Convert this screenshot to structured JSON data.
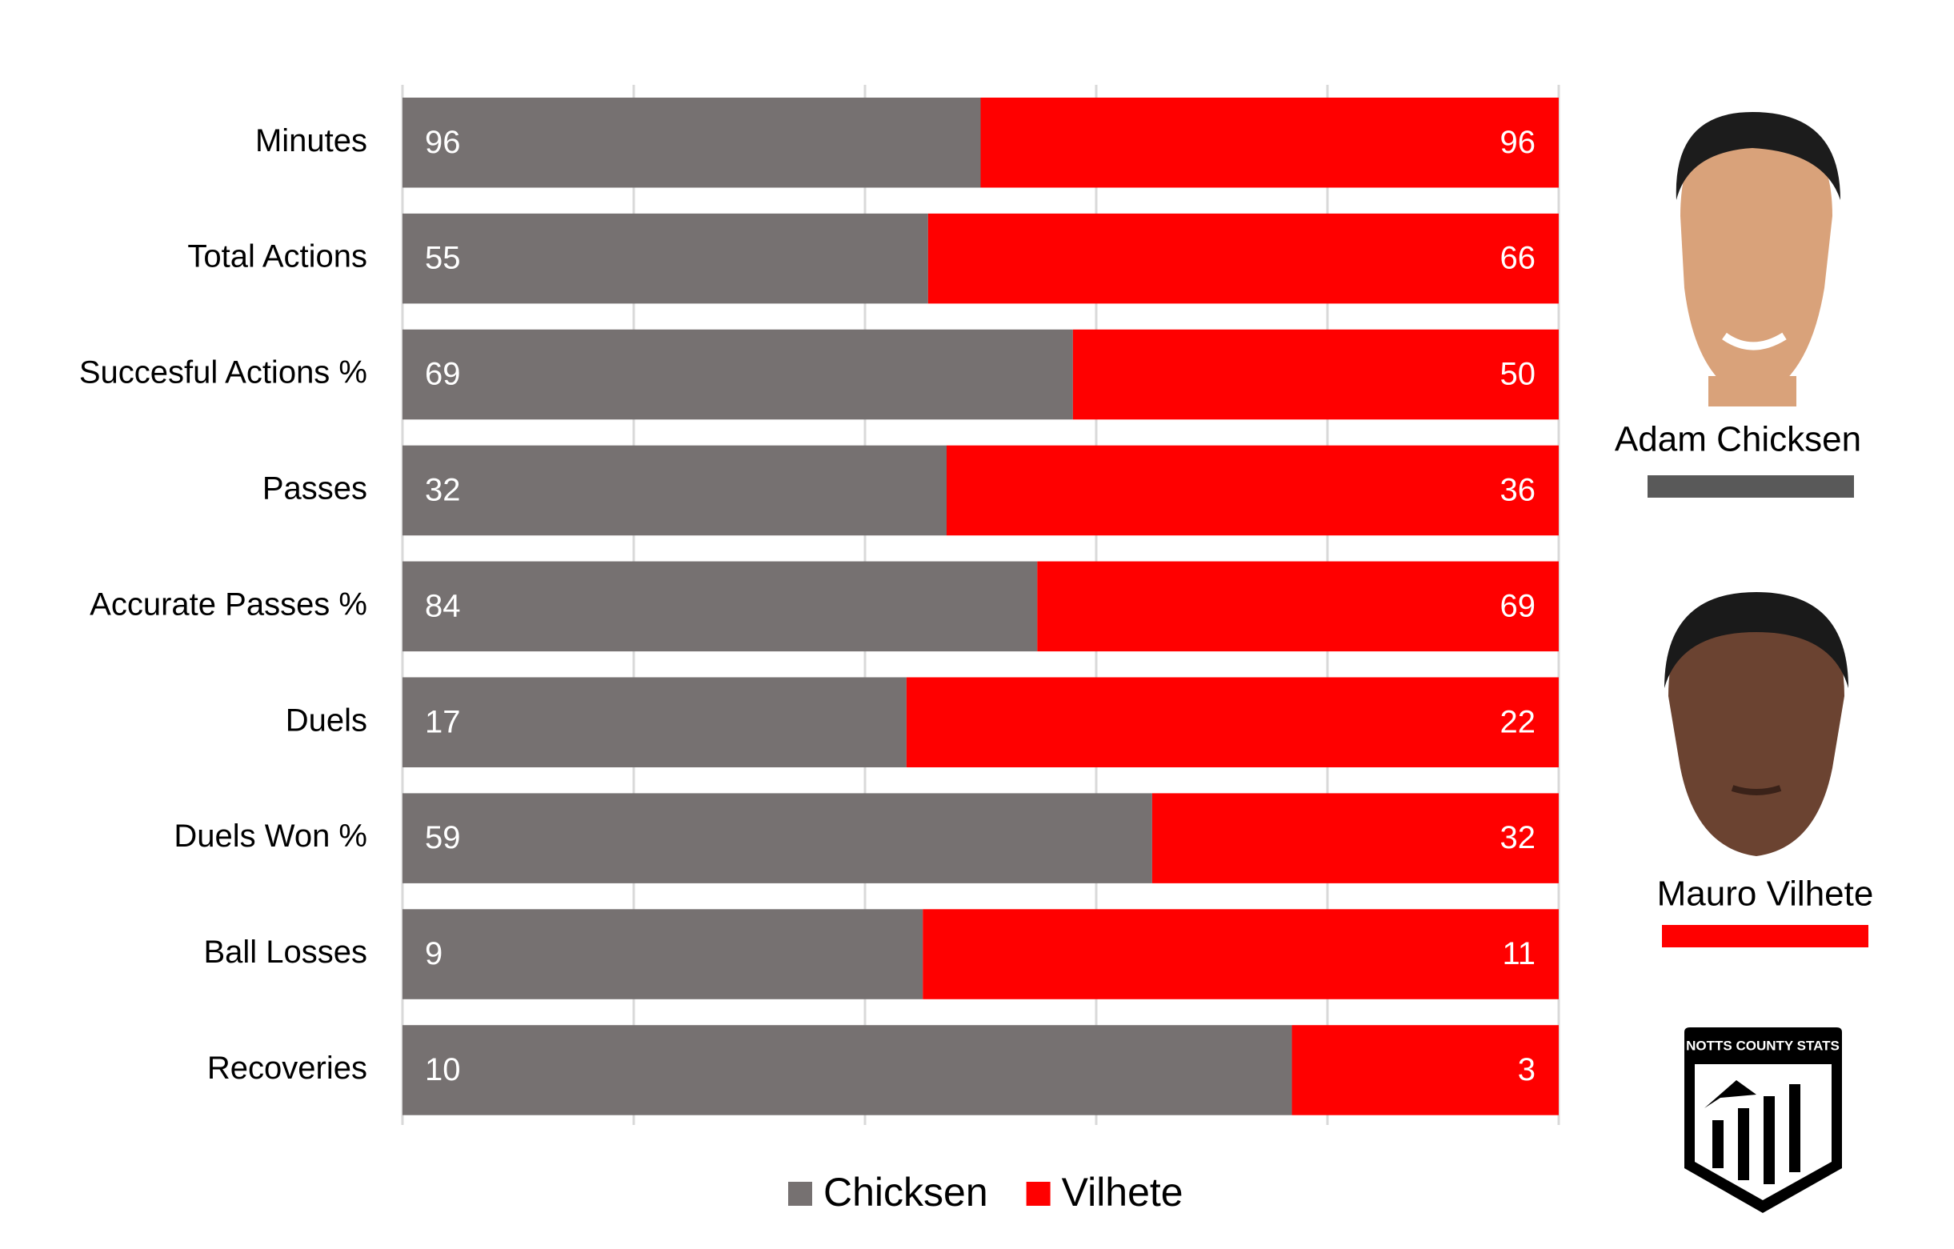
{
  "chart_data": {
    "type": "bar",
    "orientation": "horizontal",
    "stacking": "percent",
    "categories": [
      "Minutes",
      "Total Actions",
      "Succesful Actions %",
      "Passes",
      "Accurate Passes %",
      "Duels",
      "Duels Won %",
      "Ball Losses",
      "Recoveries"
    ],
    "series": [
      {
        "name": "Chicksen",
        "color": "#767171",
        "values": [
          96,
          55,
          69,
          32,
          84,
          17,
          59,
          9,
          10
        ]
      },
      {
        "name": "Vilhete",
        "color": "#ff0000",
        "values": [
          96,
          66,
          50,
          36,
          69,
          22,
          32,
          11,
          3
        ]
      }
    ],
    "xlim": [
      0,
      100
    ],
    "xticks": [
      0,
      20,
      40,
      60,
      80,
      100
    ],
    "grid": true,
    "legend": "bottom"
  },
  "players": [
    {
      "name": "Adam Chicksen",
      "color": "#595959"
    },
    {
      "name": "Mauro Vilhete",
      "color": "#ff0000"
    }
  ],
  "logo_text": "NOTTS COUNTY STATS"
}
